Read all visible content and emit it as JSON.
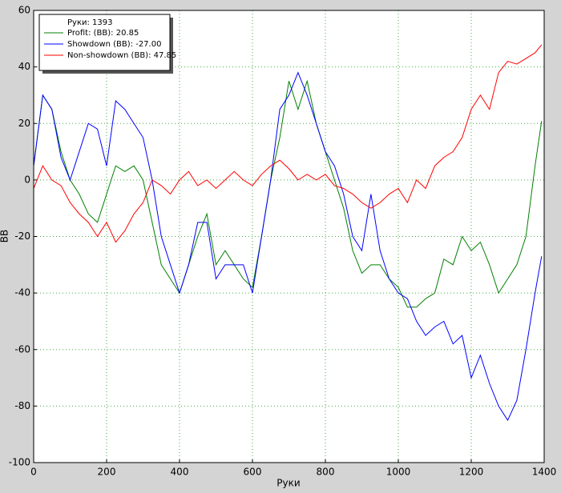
{
  "chart_data": {
    "type": "line",
    "xlabel": "Руки",
    "ylabel": "BB",
    "legend_title": "Руки: 1393",
    "x": [
      0,
      25,
      50,
      75,
      100,
      125,
      150,
      175,
      200,
      225,
      250,
      275,
      300,
      325,
      350,
      375,
      400,
      425,
      450,
      475,
      500,
      525,
      550,
      575,
      600,
      625,
      650,
      675,
      700,
      725,
      750,
      775,
      800,
      825,
      850,
      875,
      900,
      925,
      950,
      975,
      1000,
      1025,
      1050,
      1075,
      1100,
      1125,
      1150,
      1175,
      1200,
      1225,
      1250,
      1275,
      1300,
      1325,
      1350,
      1375,
      1393
    ],
    "series": [
      {
        "name": "Profit: (BB): 20.85",
        "color": "#008000",
        "values": [
          5,
          30,
          25,
          10,
          0,
          -5,
          -12,
          -15,
          -5,
          5,
          3,
          5,
          0,
          -15,
          -30,
          -35,
          -40,
          -30,
          -20,
          -12,
          -30,
          -25,
          -30,
          -35,
          -38,
          -20,
          0,
          15,
          35,
          25,
          35,
          20,
          10,
          0,
          -10,
          -25,
          -33,
          -30,
          -30,
          -35,
          -38,
          -45,
          -45,
          -42,
          -40,
          -28,
          -30,
          -20,
          -25,
          -22,
          -30,
          -40,
          -35,
          -30,
          -20,
          5,
          20.85
        ]
      },
      {
        "name": "Showdown (BB): -27.00",
        "color": "#0000ff",
        "values": [
          5,
          30,
          25,
          8,
          0,
          10,
          20,
          18,
          5,
          28,
          25,
          20,
          15,
          0,
          -20,
          -30,
          -40,
          -30,
          -15,
          -15,
          -35,
          -30,
          -30,
          -30,
          -40,
          -20,
          0,
          25,
          30,
          38,
          30,
          20,
          10,
          5,
          -5,
          -20,
          -25,
          -5,
          -25,
          -35,
          -40,
          -42,
          -50,
          -55,
          -52,
          -50,
          -58,
          -55,
          -70,
          -62,
          -72,
          -80,
          -85,
          -78,
          -60,
          -40,
          -27
        ]
      },
      {
        "name": "Non-showdown (BB): 47.85",
        "color": "#ff0000",
        "values": [
          -3,
          5,
          0,
          -2,
          -8,
          -12,
          -15,
          -20,
          -15,
          -22,
          -18,
          -12,
          -8,
          0,
          -2,
          -5,
          0,
          3,
          -2,
          0,
          -3,
          0,
          3,
          0,
          -2,
          2,
          5,
          7,
          4,
          0,
          2,
          0,
          2,
          -2,
          -3,
          -5,
          -8,
          -10,
          -8,
          -5,
          -3,
          -8,
          0,
          -3,
          5,
          8,
          10,
          15,
          25,
          30,
          25,
          38,
          42,
          41,
          43,
          45,
          47.85
        ]
      }
    ],
    "xlim": [
      0,
      1400
    ],
    "xticks": [
      0,
      200,
      400,
      600,
      800,
      1000,
      1200,
      1400
    ],
    "ylim": [
      -100,
      60
    ],
    "yticks": [
      -100,
      -80,
      -60,
      -40,
      -20,
      0,
      20,
      40,
      60
    ],
    "grid": true,
    "legend": "upper left"
  }
}
